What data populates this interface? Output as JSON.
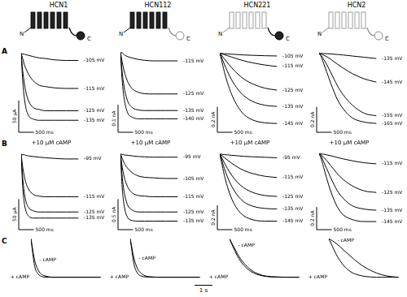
{
  "figure": {
    "columns": [
      "HCN1",
      "HCN112",
      "HCN221",
      "HCN2"
    ],
    "panel_labels": [
      "A",
      "B",
      "C"
    ],
    "terminus_labels": [
      "N",
      "C"
    ],
    "time_scale_bar": {
      "value": 1000,
      "label": "1 s"
    }
  },
  "chart_data": [
    {
      "type": "line",
      "x": [
        0,
        50,
        100,
        150,
        250,
        400,
        600,
        800,
        1100,
        1500,
        1900
      ],
      "xlim": [
        0,
        2000
      ],
      "ylim": [
        -120,
        10
      ],
      "tick_labels": false,
      "scale_bar": {
        "x": {
          "value": 500,
          "label": "500 ms"
        },
        "y": {
          "value": 50,
          "label": "50 µA"
        }
      },
      "series": [
        {
          "name": "-105 mV",
          "color": "#000000",
          "values": [
            0,
            -1,
            -1,
            -2,
            -3,
            -5,
            -7,
            -8,
            -10,
            -11,
            -11
          ]
        },
        {
          "name": "-115 mV",
          "color": "#000000",
          "values": [
            0,
            -8,
            -17,
            -23,
            -33,
            -43,
            -50,
            -52,
            -54,
            -55,
            -55
          ]
        },
        {
          "name": "-125 mV",
          "color": "#000000",
          "values": [
            0,
            -27,
            -45,
            -59,
            -75,
            -85,
            -88,
            -90,
            -90,
            -90,
            -90
          ]
        },
        {
          "name": "-135 mV",
          "color": "#000000",
          "values": [
            0,
            -42,
            -68,
            -84,
            -98,
            -103,
            -105,
            -105,
            -105,
            -105,
            -105
          ]
        }
      ]
    },
    {
      "type": "line",
      "x": [
        0,
        50,
        100,
        150,
        250,
        400,
        600,
        800,
        1100,
        1500,
        1900
      ],
      "xlim": [
        0,
        2000
      ],
      "ylim": [
        -0.28,
        0.02
      ],
      "tick_labels": false,
      "scale_bar": {
        "x": {
          "value": 500,
          "label": "500 ms"
        },
        "y": {
          "value": 0.1,
          "label": "0.1 nA"
        }
      },
      "series": [
        {
          "name": "-115 mV",
          "color": "#000000",
          "values": [
            0,
            0,
            -0.005,
            -0.01,
            -0.015,
            -0.02,
            -0.025,
            -0.028,
            -0.03,
            -0.03,
            -0.03
          ]
        },
        {
          "name": "-125 mV",
          "color": "#000000",
          "values": [
            0,
            -0.03,
            -0.057,
            -0.078,
            -0.108,
            -0.132,
            -0.144,
            -0.149,
            -0.15,
            -0.15,
            -0.15
          ]
        },
        {
          "name": "-135 mV",
          "color": "#000000",
          "values": [
            0,
            -0.063,
            -0.109,
            -0.141,
            -0.179,
            -0.2,
            -0.208,
            -0.21,
            -0.21,
            -0.21,
            -0.21
          ]
        },
        {
          "name": "-140 mV",
          "color": "#000000",
          "values": [
            0,
            -0.091,
            -0.149,
            -0.185,
            -0.221,
            -0.235,
            -0.24,
            -0.24,
            -0.24,
            -0.24,
            -0.24
          ]
        }
      ]
    },
    {
      "type": "line",
      "x": [
        0,
        50,
        100,
        150,
        250,
        400,
        600,
        800,
        1100,
        1500,
        1900
      ],
      "xlim": [
        0,
        2000
      ],
      "ylim": [
        -0.6,
        0.05
      ],
      "tick_labels": false,
      "scale_bar": {
        "x": {
          "value": 500,
          "label": "500 ms"
        },
        "y": {
          "value": 0.2,
          "label": "0.2 nA"
        }
      },
      "series": [
        {
          "name": "-105 mV",
          "color": "#000000",
          "values": [
            0,
            0,
            0,
            -0.002,
            -0.004,
            -0.006,
            -0.009,
            -0.012,
            -0.015,
            -0.018,
            -0.02
          ]
        },
        {
          "name": "-115 mV",
          "color": "#000000",
          "values": [
            0,
            -0.002,
            -0.006,
            -0.01,
            -0.017,
            -0.029,
            -0.044,
            -0.058,
            -0.074,
            -0.091,
            -0.102
          ]
        },
        {
          "name": "-125 mV",
          "color": "#000000",
          "values": [
            0,
            -0.012,
            -0.027,
            -0.042,
            -0.072,
            -0.114,
            -0.162,
            -0.201,
            -0.24,
            -0.273,
            -0.288
          ]
        },
        {
          "name": "-135 mV",
          "color": "#000000",
          "values": [
            0,
            -0.025,
            -0.055,
            -0.084,
            -0.139,
            -0.21,
            -0.281,
            -0.332,
            -0.378,
            -0.407,
            -0.416
          ]
        },
        {
          "name": "-145 mV",
          "color": "#000000",
          "values": [
            0,
            -0.044,
            -0.094,
            -0.143,
            -0.226,
            -0.325,
            -0.418,
            -0.479,
            -0.523,
            -0.545,
            -0.55
          ]
        }
      ]
    },
    {
      "type": "line",
      "x": [
        0,
        50,
        100,
        150,
        250,
        400,
        600,
        800,
        1100,
        1500,
        1900
      ],
      "xlim": [
        0,
        2000
      ],
      "ylim": [
        -0.6,
        0.05
      ],
      "tick_labels": false,
      "scale_bar": {
        "x": {
          "value": 500,
          "label": "500 ms"
        },
        "y": {
          "value": 0.2,
          "label": "0.2 nA"
        }
      },
      "series": [
        {
          "name": "-135 mV",
          "color": "#000000",
          "values": [
            0,
            0,
            0,
            -0.001,
            -0.002,
            -0.004,
            -0.008,
            -0.012,
            -0.02,
            -0.03,
            -0.04
          ]
        },
        {
          "name": "-145 mV",
          "color": "#000000",
          "values": [
            0,
            -0.003,
            -0.008,
            -0.013,
            -0.025,
            -0.048,
            -0.083,
            -0.115,
            -0.158,
            -0.2,
            -0.225
          ]
        },
        {
          "name": "-155 mV",
          "color": "#000000",
          "values": [
            0,
            -0.01,
            -0.025,
            -0.045,
            -0.085,
            -0.155,
            -0.25,
            -0.325,
            -0.405,
            -0.47,
            -0.49
          ]
        },
        {
          "name": "-165 mV",
          "color": "#000000",
          "values": [
            0,
            -0.017,
            -0.044,
            -0.077,
            -0.143,
            -0.242,
            -0.358,
            -0.435,
            -0.506,
            -0.539,
            -0.55
          ]
        }
      ]
    },
    {
      "type": "line",
      "subtitle": "+10 µM cAMP",
      "x": [
        0,
        50,
        100,
        150,
        250,
        400,
        600,
        800,
        1100,
        1500,
        1900
      ],
      "xlim": [
        0,
        2000
      ],
      "ylim": [
        -120,
        10
      ],
      "tick_labels": false,
      "scale_bar": {
        "x": {
          "value": 500,
          "label": "500 ms"
        },
        "y": {
          "value": 50,
          "label": "50 µA"
        }
      },
      "series": [
        {
          "name": "-95 mV",
          "color": "#000000",
          "values": [
            0,
            -1,
            -1,
            -2,
            -3,
            -4,
            -5,
            -6,
            -7,
            -8,
            -8
          ]
        },
        {
          "name": "-115 mV",
          "color": "#000000",
          "values": [
            0,
            -21,
            -35,
            -46,
            -58,
            -66,
            -69,
            -70,
            -70,
            -70,
            -70
          ]
        },
        {
          "name": "-125 mV",
          "color": "#000000",
          "values": [
            0,
            -38,
            -62,
            -76,
            -88,
            -93,
            -95,
            -95,
            -95,
            -95,
            -95
          ]
        },
        {
          "name": "-135 mV",
          "color": "#000000",
          "values": [
            0,
            -53,
            -79,
            -92,
            -102,
            -105,
            -105,
            -105,
            -105,
            -105,
            -105
          ]
        }
      ]
    },
    {
      "type": "line",
      "subtitle": "+10 µM cAMP",
      "x": [
        0,
        50,
        100,
        150,
        250,
        400,
        600,
        800,
        1100,
        1500,
        1900
      ],
      "xlim": [
        0,
        2000
      ],
      "ylim": [
        -1.2,
        0.1
      ],
      "tick_labels": false,
      "scale_bar": {
        "x": {
          "value": 500,
          "label": "500 ms"
        },
        "y": {
          "value": 0.5,
          "label": "0.5 nA"
        }
      },
      "series": [
        {
          "name": "-95 mV",
          "color": "#000000",
          "values": [
            0,
            -0.005,
            -0.01,
            -0.015,
            -0.02,
            -0.03,
            -0.04,
            -0.045,
            -0.05,
            -0.05,
            -0.05
          ]
        },
        {
          "name": "-105 mV",
          "color": "#000000",
          "values": [
            0,
            -0.06,
            -0.12,
            -0.17,
            -0.24,
            -0.31,
            -0.36,
            -0.38,
            -0.39,
            -0.4,
            -0.4
          ]
        },
        {
          "name": "-115 mV",
          "color": "#000000",
          "values": [
            0,
            -0.18,
            -0.32,
            -0.42,
            -0.55,
            -0.64,
            -0.68,
            -0.69,
            -0.7,
            -0.7,
            -0.7
          ]
        },
        {
          "name": "-125 mV",
          "color": "#000000",
          "values": [
            0,
            -0.33,
            -0.55,
            -0.69,
            -0.85,
            -0.92,
            -0.95,
            -0.95,
            -0.95,
            -0.95,
            -0.95
          ]
        },
        {
          "name": "-135 mV",
          "color": "#000000",
          "values": [
            0,
            -0.5,
            -0.77,
            -0.92,
            -1.05,
            -1.09,
            -1.1,
            -1.1,
            -1.1,
            -1.1,
            -1.1
          ]
        }
      ]
    },
    {
      "type": "line",
      "subtitle": "+10 µM cAMP",
      "x": [
        0,
        50,
        100,
        150,
        250,
        400,
        600,
        800,
        1100,
        1500,
        1900
      ],
      "xlim": [
        0,
        2000
      ],
      "ylim": [
        -0.6,
        0.05
      ],
      "tick_labels": false,
      "scale_bar": {
        "x": {
          "value": 500,
          "label": "500 ms"
        },
        "y": {
          "value": 0.2,
          "label": "0.2 nA"
        }
      },
      "series": [
        {
          "name": "-95 mV",
          "color": "#000000",
          "values": [
            0,
            0,
            -0.002,
            -0.004,
            -0.006,
            -0.01,
            -0.014,
            -0.018,
            -0.022,
            -0.026,
            -0.03
          ]
        },
        {
          "name": "-115 mV",
          "color": "#000000",
          "values": [
            0,
            -0.008,
            -0.018,
            -0.028,
            -0.048,
            -0.076,
            -0.108,
            -0.134,
            -0.16,
            -0.182,
            -0.192
          ]
        },
        {
          "name": "-125 mV",
          "color": "#000000",
          "values": [
            0,
            -0.021,
            -0.046,
            -0.07,
            -0.116,
            -0.175,
            -0.235,
            -0.277,
            -0.315,
            -0.34,
            -0.347
          ]
        },
        {
          "name": "-135 mV",
          "color": "#000000",
          "values": [
            0,
            -0.036,
            -0.077,
            -0.117,
            -0.185,
            -0.266,
            -0.342,
            -0.392,
            -0.428,
            -0.446,
            -0.45
          ]
        },
        {
          "name": "-145 mV",
          "color": "#000000",
          "values": [
            0,
            -0.055,
            -0.116,
            -0.171,
            -0.264,
            -0.369,
            -0.457,
            -0.506,
            -0.539,
            -0.55,
            -0.55
          ]
        }
      ]
    },
    {
      "type": "line",
      "subtitle": "+10 µM cAMP",
      "x": [
        0,
        50,
        100,
        150,
        250,
        400,
        600,
        800,
        1100,
        1500,
        1900
      ],
      "xlim": [
        0,
        2000
      ],
      "ylim": [
        -0.65,
        0.05
      ],
      "tick_labels": false,
      "scale_bar": {
        "x": {
          "value": 500,
          "label": "500 ms"
        },
        "y": {
          "value": 0.2,
          "label": "0.2 nA"
        }
      },
      "series": [
        {
          "name": "-115 mV",
          "color": "#000000",
          "values": [
            0,
            -0.001,
            -0.003,
            -0.005,
            -0.01,
            -0.019,
            -0.033,
            -0.046,
            -0.063,
            -0.08,
            -0.09
          ]
        },
        {
          "name": "-125 mV",
          "color": "#000000",
          "values": [
            0,
            -0.007,
            -0.018,
            -0.032,
            -0.06,
            -0.109,
            -0.175,
            -0.228,
            -0.284,
            -0.329,
            -0.343
          ]
        },
        {
          "name": "-135 mV",
          "color": "#000000",
          "values": [
            0,
            -0.015,
            -0.04,
            -0.07,
            -0.13,
            -0.22,
            -0.325,
            -0.395,
            -0.46,
            -0.49,
            -0.5
          ]
        },
        {
          "name": "-145 mV",
          "color": "#000000",
          "values": [
            0,
            -0.03,
            -0.072,
            -0.12,
            -0.216,
            -0.342,
            -0.468,
            -0.54,
            -0.582,
            -0.6,
            -0.6
          ]
        }
      ]
    },
    {
      "type": "line",
      "x": [
        0,
        200,
        400,
        600,
        800,
        1200,
        1600,
        2000,
        2600,
        3200,
        3800
      ],
      "xlim": [
        0,
        4000
      ],
      "ylim": [
        -1.05,
        0.05
      ],
      "tick_labels": false,
      "series": [
        {
          "name": "- cAMP",
          "color": "#000000",
          "values": [
            0,
            -0.55,
            -0.82,
            -0.93,
            -0.97,
            -1,
            -1,
            -1,
            -1,
            -1,
            -1
          ]
        },
        {
          "name": "+ cAMP",
          "color": "#000000",
          "values": [
            0,
            -0.7,
            -0.92,
            -0.98,
            -1,
            -1,
            -1,
            -1,
            -1,
            -1,
            -1
          ]
        }
      ]
    },
    {
      "type": "line",
      "x": [
        0,
        200,
        400,
        600,
        800,
        1200,
        1600,
        2000,
        2600,
        3200,
        3800
      ],
      "xlim": [
        0,
        4000
      ],
      "ylim": [
        -1.05,
        0.05
      ],
      "tick_labels": false,
      "series": [
        {
          "name": "- cAMP",
          "color": "#000000",
          "values": [
            0,
            -0.5,
            -0.78,
            -0.9,
            -0.96,
            -0.99,
            -1,
            -1,
            -1,
            -1,
            -1
          ]
        },
        {
          "name": "+ cAMP",
          "color": "#000000",
          "values": [
            0,
            -0.65,
            -0.9,
            -0.97,
            -0.99,
            -1,
            -1,
            -1,
            -1,
            -1,
            -1
          ]
        }
      ]
    },
    {
      "type": "line",
      "x": [
        0,
        200,
        400,
        600,
        800,
        1200,
        1600,
        2000,
        2600,
        3200,
        3800
      ],
      "xlim": [
        0,
        4000
      ],
      "ylim": [
        -1.05,
        0.05
      ],
      "tick_labels": false,
      "series": [
        {
          "name": "- cAMP",
          "color": "#000000",
          "values": [
            0,
            -0.18,
            -0.36,
            -0.52,
            -0.64,
            -0.82,
            -0.92,
            -0.97,
            -0.99,
            -1,
            -1
          ]
        },
        {
          "name": "+ cAMP",
          "color": "#000000",
          "values": [
            0,
            -0.22,
            -0.42,
            -0.58,
            -0.7,
            -0.86,
            -0.94,
            -0.98,
            -1,
            -1,
            -1
          ]
        }
      ]
    },
    {
      "type": "line",
      "x": [
        0,
        200,
        400,
        600,
        800,
        1200,
        1600,
        2000,
        2600,
        3200,
        3800
      ],
      "xlim": [
        0,
        4000
      ],
      "ylim": [
        -1.05,
        0.05
      ],
      "tick_labels": false,
      "series": [
        {
          "name": "- cAMP",
          "color": "#000000",
          "values": [
            0,
            -0.05,
            -0.12,
            -0.2,
            -0.29,
            -0.46,
            -0.62,
            -0.75,
            -0.89,
            -0.97,
            -1
          ]
        },
        {
          "name": "+ cAMP",
          "color": "#000000",
          "values": [
            0,
            -0.2,
            -0.4,
            -0.56,
            -0.69,
            -0.86,
            -0.94,
            -0.98,
            -1,
            -1,
            -1
          ]
        }
      ]
    }
  ]
}
